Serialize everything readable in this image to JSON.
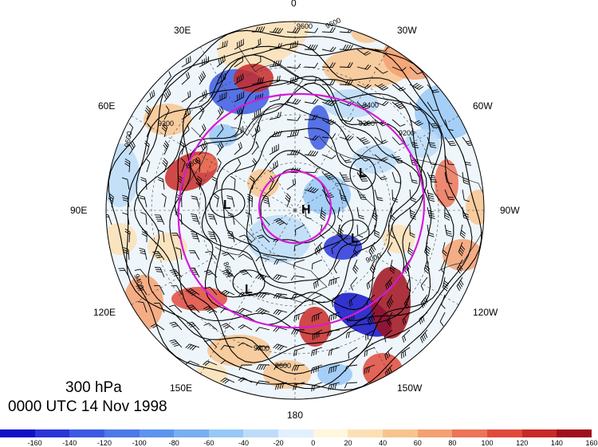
{
  "title": {
    "level": "300 hPa",
    "datetime": "0000 UTC 14 Nov 1998"
  },
  "longitude_labels": [
    "0",
    "30W",
    "60W",
    "90W",
    "120W",
    "150W",
    "180",
    "150E",
    "120E",
    "90E",
    "60E",
    "30E"
  ],
  "contour_labels": [
    "9600",
    "9400",
    "9200",
    "9000",
    "8800",
    "8600"
  ],
  "pressure_centers": [
    "H",
    "L",
    "L",
    "L",
    "L"
  ],
  "colorbar": {
    "ticks": [
      "-160",
      "-140",
      "-120",
      "-100",
      "-80",
      "-60",
      "-40",
      "-20",
      "0",
      "20",
      "40",
      "60",
      "80",
      "100",
      "120",
      "140",
      "160"
    ],
    "colors": [
      "#1010c8",
      "#2a35d8",
      "#3c5ae2",
      "#4c78e8",
      "#5e94ee",
      "#78aef2",
      "#98c8f6",
      "#bcdcf8",
      "#e0f0fc",
      "#fff6dc",
      "#fce0b4",
      "#f8c48e",
      "#f4a070",
      "#ec7458",
      "#e04a3c",
      "#c82a28",
      "#a0101c"
    ]
  },
  "map_colors": {
    "contour": "#000000",
    "ring": "#d81ad8",
    "coast": "#333333"
  }
}
